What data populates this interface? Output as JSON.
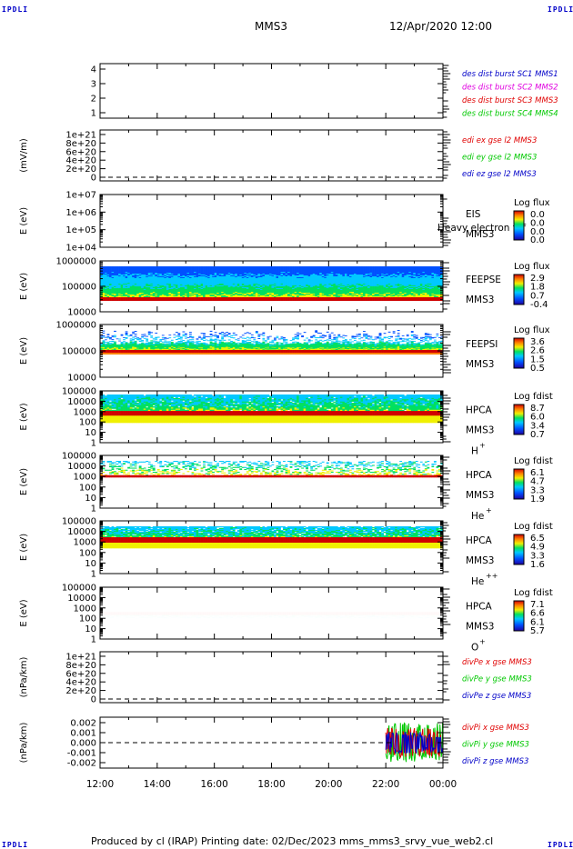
{
  "corners": {
    "tl": "IPDLI",
    "tr": "IPDLI",
    "bl": "IPDLI",
    "br": "IPDLI"
  },
  "header": {
    "spacecraft": "MMS3",
    "datetime": "12/Apr/2020 12:00"
  },
  "footer": {
    "text": "Produced by cl (IRAP)   Printing date: 02/Dec/2023   mms_mms3_srvy_vue_web2.cl"
  },
  "time_axis": {
    "ticks": [
      "12:00",
      "14:00",
      "16:00",
      "18:00",
      "20:00",
      "22:00",
      "00:00"
    ]
  },
  "colors": {
    "red": "#e00000",
    "green": "#00c800",
    "blue": "#0000c8",
    "magenta": "#e000e0"
  },
  "chart_data": [
    {
      "type": "line",
      "id": "p1",
      "ylabel": "",
      "yticks": [
        "1",
        "2",
        "3",
        "4"
      ],
      "ylim": [
        0.5,
        4.5
      ],
      "legend": [
        {
          "text": "des dist burst SC1 MMS1",
          "color": "#0000c8"
        },
        {
          "text": "des dist burst SC2 MMS2",
          "color": "#e000e0"
        },
        {
          "text": "des dist burst SC3 MMS3",
          "color": "#e00000"
        },
        {
          "text": "des dist burst SC4 MMS4",
          "color": "#00c800"
        }
      ],
      "series": []
    },
    {
      "type": "line",
      "id": "p2",
      "ylabel": "(mV/m)",
      "yticks": [
        "0",
        "2e+20",
        "4e+20",
        "6e+20",
        "8e+20",
        "1e+21"
      ],
      "ylim": [
        -2e+20,
        1.05e+21
      ],
      "legend": [
        {
          "text": "edi ex gse l2 MMS3",
          "color": "#e00000"
        },
        {
          "text": "edi ey gse l2 MMS3",
          "color": "#00c800"
        },
        {
          "text": "edi ez gse l2 MMS3",
          "color": "#0000c8"
        }
      ],
      "series": []
    },
    {
      "type": "heatmap",
      "id": "p3",
      "ylabel": "E (eV)",
      "yticks": [
        "1e+04",
        "1e+05",
        "1e+06",
        "1e+07"
      ],
      "instrument": [
        "EIS",
        "MMS3"
      ],
      "overlay": "Heavy electron tof",
      "cbar_title": "Log flux",
      "cbar_ticks": [
        "0.0",
        "0.0",
        "0.0",
        "0.0"
      ]
    },
    {
      "type": "heatmap",
      "id": "p4",
      "ylabel": "E (eV)",
      "yticks": [
        "10000",
        "100000",
        "1000000"
      ],
      "instrument": [
        "FEEPSE",
        "MMS3"
      ],
      "cbar_title": "Log flux",
      "cbar_ticks": [
        "2.9",
        "1.8",
        "0.7",
        "-0.4"
      ]
    },
    {
      "type": "heatmap",
      "id": "p5",
      "ylabel": "E (eV)",
      "yticks": [
        "10000",
        "100000",
        "1000000"
      ],
      "instrument": [
        "FEEPSI",
        "MMS3"
      ],
      "cbar_title": "Log flux",
      "cbar_ticks": [
        "3.6",
        "2.6",
        "1.5",
        "0.5"
      ]
    },
    {
      "type": "heatmap",
      "id": "p6",
      "ylabel": "E (eV)",
      "yticks": [
        "1",
        "10",
        "100",
        "1000",
        "10000",
        "100000"
      ],
      "instrument": [
        "HPCA",
        "MMS3"
      ],
      "species": "H",
      "charge": "+",
      "cbar_title": "Log fdist",
      "cbar_ticks": [
        "8.7",
        "6.0",
        "3.4",
        "0.7"
      ]
    },
    {
      "type": "heatmap",
      "id": "p7",
      "ylabel": "E (eV)",
      "yticks": [
        "1",
        "10",
        "100",
        "1000",
        "10000",
        "100000"
      ],
      "instrument": [
        "HPCA",
        "MMS3"
      ],
      "species": "He",
      "charge": "+",
      "cbar_title": "Log fdist",
      "cbar_ticks": [
        "6.1",
        "4.7",
        "3.3",
        "1.9"
      ]
    },
    {
      "type": "heatmap",
      "id": "p8",
      "ylabel": "E (eV)",
      "yticks": [
        "1",
        "10",
        "100",
        "1000",
        "10000",
        "100000"
      ],
      "instrument": [
        "HPCA",
        "MMS3"
      ],
      "species": "He",
      "charge": "++",
      "cbar_title": "Log fdist",
      "cbar_ticks": [
        "6.5",
        "4.9",
        "3.3",
        "1.6"
      ]
    },
    {
      "type": "heatmap",
      "id": "p9",
      "ylabel": "E (eV)",
      "yticks": [
        "1",
        "10",
        "100",
        "1000",
        "10000",
        "100000"
      ],
      "instrument": [
        "HPCA",
        "MMS3"
      ],
      "species": "O",
      "charge": "+",
      "cbar_title": "Log fdist",
      "cbar_ticks": [
        "7.1",
        "6.6",
        "6.1",
        "5.7"
      ]
    },
    {
      "type": "line",
      "id": "p10",
      "ylabel": "(nPa/km)",
      "yticks": [
        "0",
        "2e+20",
        "4e+20",
        "6e+20",
        "8e+20",
        "1e+21"
      ],
      "ylim": [
        -2e+20,
        1.05e+21
      ],
      "legend": [
        {
          "text": "divPe x gse MMS3",
          "color": "#e00000"
        },
        {
          "text": "divPe y gse MMS3",
          "color": "#00c800"
        },
        {
          "text": "divPe z gse MMS3",
          "color": "#0000c8"
        }
      ],
      "series": []
    },
    {
      "type": "line",
      "id": "p11",
      "ylabel": "(nPa/km)",
      "yticks": [
        "-0.002",
        "-0.001",
        "0.000",
        "0.001",
        "0.002"
      ],
      "ylim": [
        -0.0026,
        0.0026
      ],
      "legend": [
        {
          "text": "divPi x gse MMS3",
          "color": "#e00000"
        },
        {
          "text": "divPi y gse MMS3",
          "color": "#00c800"
        },
        {
          "text": "divPi z gse MMS3",
          "color": "#0000c8"
        }
      ],
      "series": [
        {
          "name": "divPi x gse MMS3",
          "t_range": [
            "22:00",
            "00:00"
          ],
          "amplitude": 0.0016
        },
        {
          "name": "divPi y gse MMS3",
          "t_range": [
            "22:00",
            "00:00"
          ],
          "amplitude": 0.0022
        },
        {
          "name": "divPi z gse MMS3",
          "t_range": [
            "22:00",
            "00:00"
          ],
          "amplitude": 0.0012
        }
      ]
    }
  ]
}
